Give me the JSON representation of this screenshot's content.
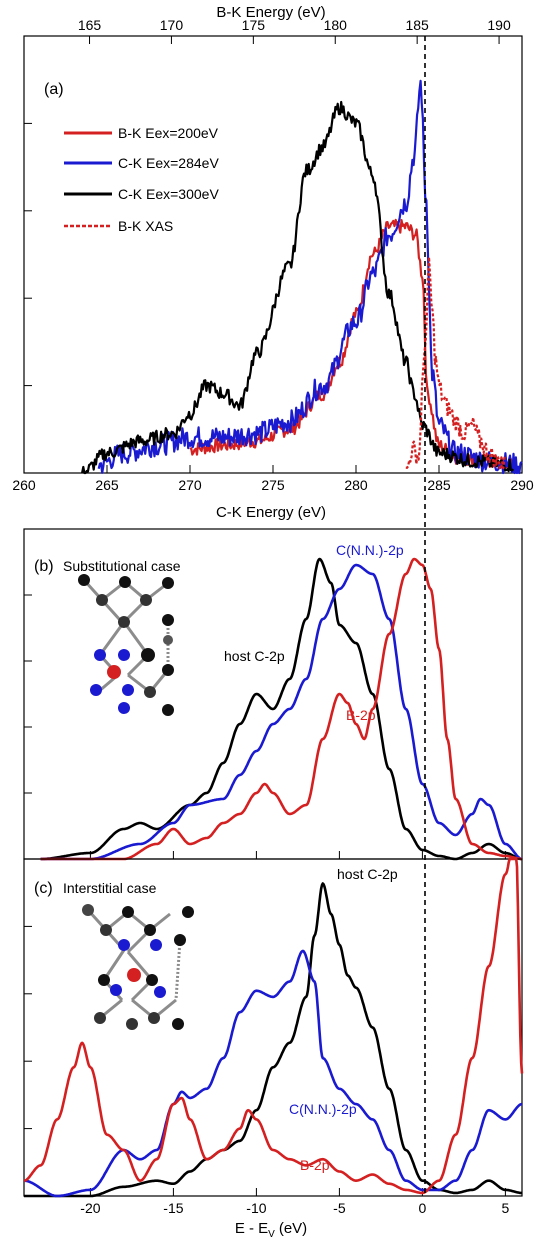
{
  "colors": {
    "red": "#d42020",
    "blue": "#1a1ad0",
    "black": "#000000"
  },
  "chart_data": [
    {
      "type": "line",
      "panel_label": "(a)",
      "xlabel": "C-K Energy (eV)",
      "x_ticks": [
        "260",
        "265",
        "270",
        "275",
        "280",
        "285",
        "290"
      ],
      "xlim": [
        260,
        290
      ],
      "top_xlabel": "B-K Energy (eV)",
      "top_ticks": [
        "165",
        "170",
        "175",
        "180",
        "185",
        "190"
      ],
      "top_xlim": [
        161,
        191.4
      ],
      "ylim": [
        0,
        1.1
      ],
      "grid": false,
      "legend_position": "top-left",
      "series": [
        {
          "name": "B-K Eex=200eV",
          "color": "#d42020",
          "style": "solid",
          "x": [
            270,
            272,
            274,
            276,
            278,
            279,
            280,
            281,
            282,
            283,
            283.6,
            284,
            284.3,
            285,
            286,
            288,
            289.5
          ],
          "y": [
            0.06,
            0.07,
            0.08,
            0.11,
            0.2,
            0.28,
            0.4,
            0.55,
            0.62,
            0.62,
            0.6,
            0.5,
            0.2,
            0.07,
            0.04,
            0.03,
            0.02
          ]
        },
        {
          "name": "C-K Eex=284eV",
          "color": "#1a1ad0",
          "style": "solid",
          "x": [
            264.5,
            266,
            268,
            270,
            272,
            274,
            276,
            278,
            280,
            281,
            282,
            283,
            283.5,
            283.9,
            284.2,
            284.6,
            285,
            286,
            288,
            290
          ],
          "y": [
            0.02,
            0.05,
            0.07,
            0.09,
            0.09,
            0.1,
            0.13,
            0.22,
            0.38,
            0.5,
            0.6,
            0.68,
            0.8,
            0.98,
            0.7,
            0.25,
            0.12,
            0.05,
            0.03,
            0.02
          ]
        },
        {
          "name": "C-K Eex=300eV",
          "color": "#000000",
          "style": "solid",
          "x": [
            263.5,
            265,
            267,
            269,
            270,
            271,
            272,
            273,
            274,
            276,
            277,
            278,
            279,
            280,
            281,
            282,
            283,
            283.5,
            284,
            285,
            287,
            289.5
          ],
          "y": [
            0.0,
            0.05,
            0.08,
            0.1,
            0.15,
            0.22,
            0.2,
            0.17,
            0.3,
            0.52,
            0.76,
            0.82,
            0.92,
            0.88,
            0.75,
            0.45,
            0.28,
            0.2,
            0.12,
            0.05,
            0.03,
            0.02
          ]
        },
        {
          "name": "B-K XAS",
          "color": "#d42020",
          "style": "dashed",
          "x": [
            283,
            283.4,
            283.8,
            284,
            284.2,
            284.4,
            284.6,
            284.8,
            285,
            285.3,
            285.6,
            286,
            286.5,
            287,
            287.5,
            288,
            288.5,
            289
          ],
          "y": [
            0.0,
            0.06,
            0.04,
            0.22,
            0.35,
            0.52,
            0.4,
            0.28,
            0.22,
            0.18,
            0.16,
            0.13,
            0.1,
            0.12,
            0.08,
            0.05,
            0.03,
            0.02
          ]
        }
      ]
    },
    {
      "type": "line",
      "panel_label": "(b)",
      "title": "Substitutional case",
      "xlim": [
        -24,
        6
      ],
      "ylim": [
        0,
        1.1
      ],
      "series": [
        {
          "name": "host C-2p",
          "color": "#000000",
          "x": [
            -23,
            -20,
            -18,
            -17,
            -16,
            -14,
            -13,
            -12,
            -11,
            -10,
            -9,
            -8,
            -7,
            -6.2,
            -5.5,
            -5,
            -4,
            -3,
            -2,
            -1,
            0,
            1,
            2,
            3,
            4,
            5,
            6
          ],
          "y": [
            0.0,
            0.02,
            0.1,
            0.12,
            0.1,
            0.18,
            0.22,
            0.32,
            0.45,
            0.55,
            0.5,
            0.6,
            0.8,
            1.0,
            0.92,
            0.78,
            0.72,
            0.55,
            0.3,
            0.1,
            0.03,
            0.01,
            0.0,
            0.02,
            0.05,
            0.02,
            0.0
          ]
        },
        {
          "name": "C(N.N.)-2p",
          "color": "#1a1ad0",
          "x": [
            -23,
            -20,
            -17,
            -15,
            -14,
            -12,
            -11,
            -10,
            -9,
            -8,
            -7,
            -6,
            -5,
            -4,
            -3,
            -2,
            -1,
            0,
            1,
            2,
            3,
            3.5,
            4,
            5,
            6
          ],
          "y": [
            0.0,
            0.0,
            0.05,
            0.12,
            0.18,
            0.2,
            0.28,
            0.36,
            0.45,
            0.5,
            0.6,
            0.8,
            0.9,
            0.98,
            0.95,
            0.8,
            0.5,
            0.25,
            0.12,
            0.08,
            0.15,
            0.2,
            0.18,
            0.05,
            0.0
          ]
        },
        {
          "name": "B-2p",
          "color": "#d42020",
          "x": [
            -23,
            -18,
            -16,
            -15,
            -14,
            -13,
            -12,
            -11,
            -10,
            -9.5,
            -9,
            -8,
            -7,
            -6,
            -5,
            -4.5,
            -4,
            -3.5,
            -3,
            -2,
            -1,
            -0.5,
            0,
            0.5,
            1,
            1.5,
            2,
            3,
            4,
            5,
            6
          ],
          "y": [
            0.0,
            0.0,
            0.05,
            0.1,
            0.05,
            0.07,
            0.12,
            0.15,
            0.22,
            0.25,
            0.22,
            0.15,
            0.18,
            0.4,
            0.55,
            0.52,
            0.45,
            0.4,
            0.5,
            0.75,
            0.95,
            1.0,
            0.98,
            0.9,
            0.7,
            0.4,
            0.2,
            0.05,
            0.02,
            0.01,
            0.0
          ]
        }
      ]
    },
    {
      "type": "line",
      "panel_label": "(c)",
      "title": "Interstitial case",
      "xlabel": "E - E",
      "xlabel_subscript": "V",
      "xlabel_unit": "(eV)",
      "x_ticks": [
        "-20",
        "-15",
        "-10",
        "-5",
        "0",
        "5"
      ],
      "xlim": [
        -24,
        6
      ],
      "ylim": [
        0,
        1.1
      ],
      "series": [
        {
          "name": "host C-2p",
          "color": "#000000",
          "x": [
            -24,
            -20,
            -18,
            -16,
            -15,
            -14,
            -13,
            -12,
            -11,
            -10,
            -9,
            -8,
            -7,
            -6.5,
            -6,
            -5.5,
            -5,
            -4.5,
            -4,
            -3,
            -2,
            -1,
            0,
            1,
            2,
            3,
            4,
            5,
            6
          ],
          "y": [
            0.0,
            0.0,
            0.03,
            0.05,
            0.04,
            0.08,
            0.12,
            0.15,
            0.18,
            0.28,
            0.42,
            0.5,
            0.65,
            0.85,
            1.02,
            0.92,
            0.82,
            0.72,
            0.68,
            0.55,
            0.35,
            0.15,
            0.05,
            0.02,
            0.01,
            0.02,
            0.05,
            0.02,
            0.01
          ]
        },
        {
          "name": "C(N.N.)-2p",
          "color": "#1a1ad0",
          "x": [
            -24,
            -22,
            -20,
            -18,
            -17,
            -16,
            -15,
            -14.5,
            -14,
            -13,
            -12,
            -11,
            -10,
            -9,
            -8,
            -7.2,
            -6.5,
            -6,
            -5,
            -4,
            -3,
            -2,
            -1,
            0,
            1,
            2,
            3,
            4,
            5,
            6
          ],
          "y": [
            0.05,
            0.0,
            0.02,
            0.15,
            0.12,
            0.15,
            0.3,
            0.34,
            0.32,
            0.35,
            0.45,
            0.6,
            0.67,
            0.65,
            0.7,
            0.8,
            0.7,
            0.45,
            0.35,
            0.3,
            0.25,
            0.15,
            0.05,
            0.02,
            0.02,
            0.05,
            0.15,
            0.28,
            0.25,
            0.3
          ]
        },
        {
          "name": "B-2p",
          "color": "#d42020",
          "x": [
            -24,
            -23,
            -22,
            -21,
            -20.5,
            -20,
            -19,
            -18,
            -17,
            -16,
            -15,
            -14.5,
            -14,
            -13,
            -12,
            -11,
            -10.5,
            -10,
            -9,
            -8,
            -7,
            -6,
            -5,
            -4,
            -3,
            -2,
            -1,
            0,
            1,
            2,
            3,
            4,
            5,
            5.6,
            6
          ],
          "y": [
            0.05,
            0.1,
            0.25,
            0.42,
            0.5,
            0.42,
            0.2,
            0.15,
            0.05,
            0.12,
            0.3,
            0.32,
            0.25,
            0.12,
            0.15,
            0.22,
            0.28,
            0.25,
            0.15,
            0.12,
            0.1,
            0.12,
            0.08,
            0.05,
            0.07,
            0.04,
            0.02,
            0.01,
            0.05,
            0.2,
            0.45,
            0.75,
            1.05,
            1.2,
            0.4
          ]
        }
      ]
    }
  ],
  "labels": {
    "b_host": "host C-2p",
    "b_cnn": "C(N.N.)-2p",
    "b_b2p": "B-2p",
    "c_host": "host C-2p",
    "c_cnn": "C(N.N.)-2p",
    "c_b2p": "B-2p"
  }
}
